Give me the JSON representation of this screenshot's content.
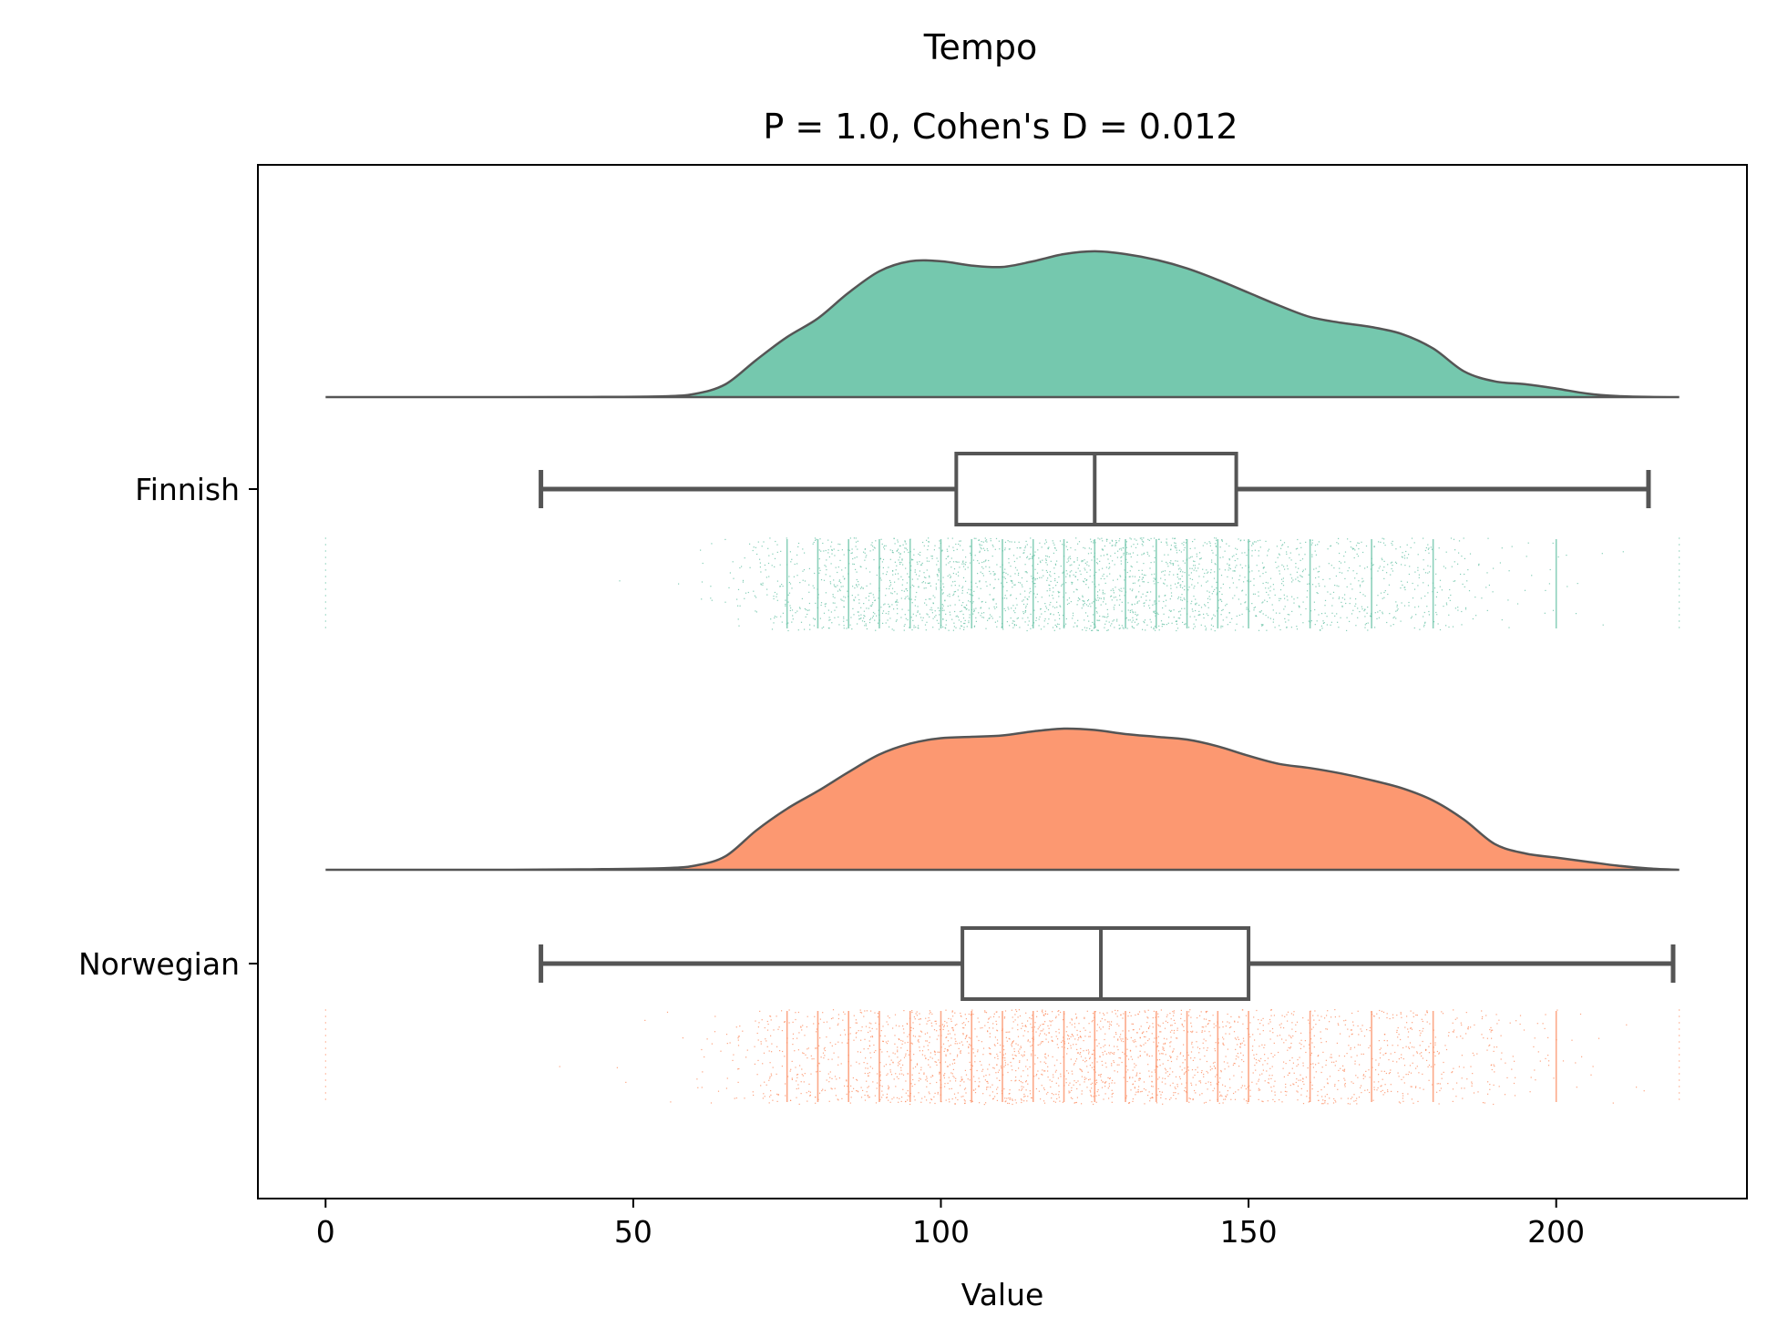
{
  "chart_data": {
    "type": "raincloud",
    "title": "Tempo",
    "subtitle": "P = 1.0, Cohen's D = 0.012",
    "xlabel": "Value",
    "ylabel": "",
    "xlim": [
      -11,
      231
    ],
    "xticks": [
      0,
      50,
      100,
      150,
      200
    ],
    "grid": false,
    "groups": [
      {
        "name": "Finnish",
        "color": "#66c2a5",
        "fill_alpha": 0.9,
        "box": {
          "whisker_low": 35,
          "q1": 102.5,
          "median": 125,
          "q3": 148,
          "whisker_high": 215
        },
        "density": {
          "x": [
            0,
            30,
            45,
            55,
            60,
            65,
            70,
            75,
            80,
            85,
            90,
            95,
            100,
            105,
            110,
            115,
            120,
            125,
            130,
            135,
            140,
            145,
            150,
            155,
            160,
            165,
            170,
            175,
            180,
            185,
            190,
            195,
            200,
            205,
            210,
            215,
            220
          ],
          "y": [
            0.0,
            0.0,
            0.001,
            0.006,
            0.022,
            0.09,
            0.26,
            0.42,
            0.55,
            0.73,
            0.88,
            0.95,
            0.95,
            0.92,
            0.91,
            0.95,
            1.0,
            1.02,
            1.0,
            0.96,
            0.9,
            0.82,
            0.73,
            0.64,
            0.56,
            0.52,
            0.49,
            0.44,
            0.34,
            0.18,
            0.11,
            0.09,
            0.06,
            0.025,
            0.007,
            0.001,
            0.0
          ]
        },
        "strip": {
          "min": 0,
          "max": 220,
          "dense_range": [
            75,
            180
          ],
          "spikes": [
            75,
            80,
            85,
            90,
            95,
            100,
            105,
            110,
            115,
            120,
            125,
            130,
            135,
            140,
            145,
            150,
            160,
            170,
            180,
            200
          ]
        }
      },
      {
        "name": "Norwegian",
        "color": "#fc8d62",
        "fill_alpha": 0.9,
        "box": {
          "whisker_low": 35,
          "q1": 103.5,
          "median": 126,
          "q3": 150,
          "whisker_high": 219
        },
        "density": {
          "x": [
            0,
            30,
            45,
            55,
            60,
            65,
            70,
            75,
            80,
            85,
            90,
            95,
            100,
            105,
            110,
            115,
            120,
            125,
            130,
            135,
            140,
            145,
            150,
            155,
            160,
            165,
            170,
            175,
            180,
            185,
            190,
            195,
            200,
            205,
            210,
            215,
            220
          ],
          "y": [
            0.0,
            0.0,
            0.005,
            0.012,
            0.03,
            0.1,
            0.29,
            0.45,
            0.58,
            0.72,
            0.85,
            0.93,
            0.97,
            0.98,
            0.99,
            1.02,
            1.04,
            1.03,
            1.0,
            0.98,
            0.96,
            0.91,
            0.84,
            0.78,
            0.75,
            0.71,
            0.66,
            0.6,
            0.51,
            0.37,
            0.19,
            0.12,
            0.09,
            0.06,
            0.03,
            0.01,
            0.0
          ]
        },
        "strip": {
          "min": 0,
          "max": 220,
          "dense_range": [
            75,
            180
          ],
          "spikes": [
            75,
            80,
            85,
            90,
            95,
            100,
            105,
            110,
            115,
            120,
            125,
            130,
            135,
            140,
            145,
            150,
            160,
            170,
            180,
            200
          ]
        }
      }
    ]
  }
}
